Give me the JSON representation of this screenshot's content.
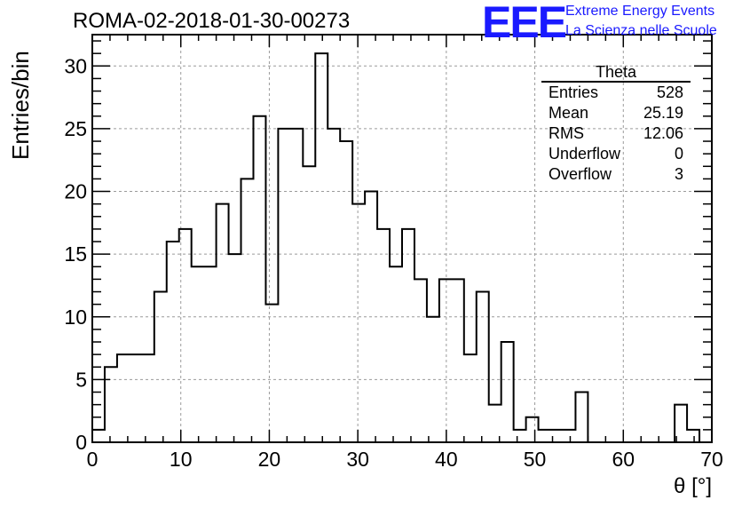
{
  "title": "ROMA-02-2018-01-30-00273",
  "logo": {
    "text": "EEE",
    "line1": "Extreme Energy Events",
    "line2": "La Scienza nelle Scuole",
    "color": "#1a1aff"
  },
  "stats": {
    "title": "Theta",
    "rows": [
      {
        "label": "Entries",
        "value": "528"
      },
      {
        "label": "Mean",
        "value": "25.19"
      },
      {
        "label": "RMS",
        "value": "12.06"
      },
      {
        "label": "Underflow",
        "value": "0"
      },
      {
        "label": "Overflow",
        "value": "3"
      }
    ]
  },
  "chart_data": {
    "type": "histogram",
    "xlabel": "θ [°]",
    "ylabel": "Entries/bin",
    "xlim": [
      0,
      70
    ],
    "ylim": [
      0,
      32.5
    ],
    "bin_width": 1.4,
    "bin_edges_start": 0,
    "x_ticks": [
      0,
      10,
      20,
      30,
      40,
      50,
      60,
      70
    ],
    "y_ticks": [
      0,
      5,
      10,
      15,
      20,
      25,
      30
    ],
    "grid": true,
    "values": [
      1,
      6,
      7,
      7,
      7,
      12,
      16,
      17,
      14,
      14,
      19,
      15,
      21,
      26,
      11,
      25,
      25,
      22,
      31,
      25,
      24,
      19,
      20,
      17,
      14,
      17,
      13,
      10,
      13,
      13,
      7,
      12,
      3,
      8,
      1,
      2,
      1,
      1,
      1,
      4,
      0,
      0,
      0,
      0,
      0,
      0,
      0,
      3,
      1,
      0
    ]
  }
}
